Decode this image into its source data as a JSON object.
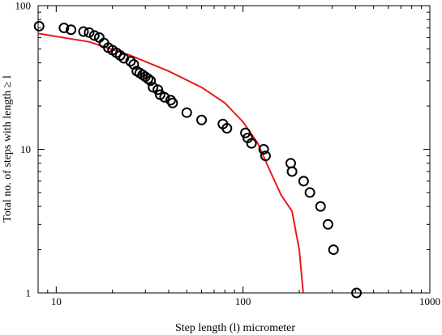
{
  "chart_data": {
    "type": "scatter",
    "title": "",
    "xlabel": "Step length (l) micrometer",
    "ylabel": "Total no. of steps with length ≥ l",
    "xscale": "log",
    "yscale": "log",
    "xlim": [
      8,
      1000
    ],
    "ylim": [
      1,
      100
    ],
    "x_tick_labels": [
      "10",
      "100",
      "1000"
    ],
    "y_tick_labels": [
      "1",
      "10",
      "100"
    ],
    "grid": false,
    "legend": "none",
    "series": [
      {
        "kind": "scatter",
        "marker": "open-circle",
        "color": "#000000",
        "points": [
          [
            8.1,
            72
          ],
          [
            11,
            70
          ],
          [
            12,
            68
          ],
          [
            14,
            66
          ],
          [
            15,
            65
          ],
          [
            16,
            62
          ],
          [
            17,
            60
          ],
          [
            18,
            55
          ],
          [
            19,
            51
          ],
          [
            20,
            49
          ],
          [
            21,
            47
          ],
          [
            22,
            45
          ],
          [
            23,
            43
          ],
          [
            25,
            41
          ],
          [
            26,
            39
          ],
          [
            27,
            35
          ],
          [
            28,
            34
          ],
          [
            29,
            33
          ],
          [
            30,
            32
          ],
          [
            31,
            31
          ],
          [
            32,
            30
          ],
          [
            33,
            27
          ],
          [
            35,
            26
          ],
          [
            36,
            24
          ],
          [
            38,
            23
          ],
          [
            41,
            22
          ],
          [
            42,
            21
          ],
          [
            50,
            18
          ],
          [
            60,
            16
          ],
          [
            78,
            15
          ],
          [
            82,
            14
          ],
          [
            103,
            13
          ],
          [
            106,
            12
          ],
          [
            111,
            11
          ],
          [
            129,
            10
          ],
          [
            132,
            9
          ],
          [
            180,
            8
          ],
          [
            183,
            7
          ],
          [
            211,
            6
          ],
          [
            228,
            5
          ],
          [
            260,
            4
          ],
          [
            285,
            3
          ],
          [
            305,
            2
          ],
          [
            405,
            1
          ]
        ]
      },
      {
        "kind": "line",
        "color": "#e8191c",
        "points": [
          [
            8,
            64
          ],
          [
            15,
            56
          ],
          [
            25,
            45
          ],
          [
            40,
            35
          ],
          [
            60,
            27
          ],
          [
            80,
            21
          ],
          [
            100,
            15.5
          ],
          [
            120,
            11
          ],
          [
            140,
            7
          ],
          [
            160,
            4.8
          ],
          [
            183,
            3.7
          ],
          [
            200,
            2
          ],
          [
            210,
            1
          ]
        ]
      }
    ]
  }
}
